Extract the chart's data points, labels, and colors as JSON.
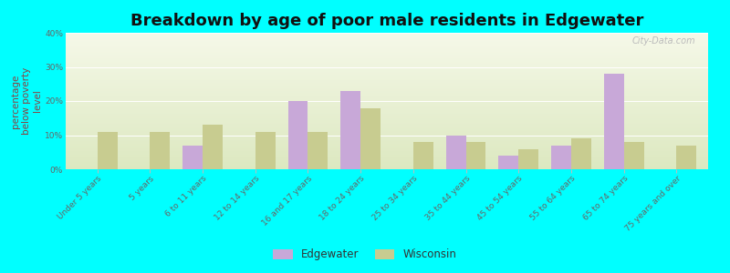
{
  "title": "Breakdown by age of poor male residents in Edgewater",
  "ylabel": "percentage\nbelow poverty\nlevel",
  "categories": [
    "Under 5 years",
    "5 years",
    "6 to 11 years",
    "12 to 14 years",
    "16 and 17 years",
    "18 to 24 years",
    "25 to 34 years",
    "35 to 44 years",
    "45 to 54 years",
    "55 to 64 years",
    "65 to 74 years",
    "75 years and over"
  ],
  "edgewater": [
    0,
    0,
    7,
    0,
    20,
    23,
    0,
    10,
    4,
    7,
    28,
    0
  ],
  "wisconsin": [
    11,
    11,
    13,
    11,
    11,
    18,
    8,
    8,
    6,
    9,
    8,
    7
  ],
  "edgewater_color": "#c8a8d8",
  "wisconsin_color": "#c8cc90",
  "outer_bg": "#00ffff",
  "plot_bg_top": "#f5f8e8",
  "plot_bg_bottom": "#dce8c0",
  "ylim": [
    0,
    40
  ],
  "yticks": [
    0,
    10,
    20,
    30,
    40
  ],
  "ytick_labels": [
    "0%",
    "10%",
    "20%",
    "30%",
    "40%"
  ],
  "bar_width": 0.38,
  "title_fontsize": 13,
  "axis_label_fontsize": 7.5,
  "tick_fontsize": 6.5,
  "legend_fontsize": 8.5,
  "watermark": "City-Data.com"
}
